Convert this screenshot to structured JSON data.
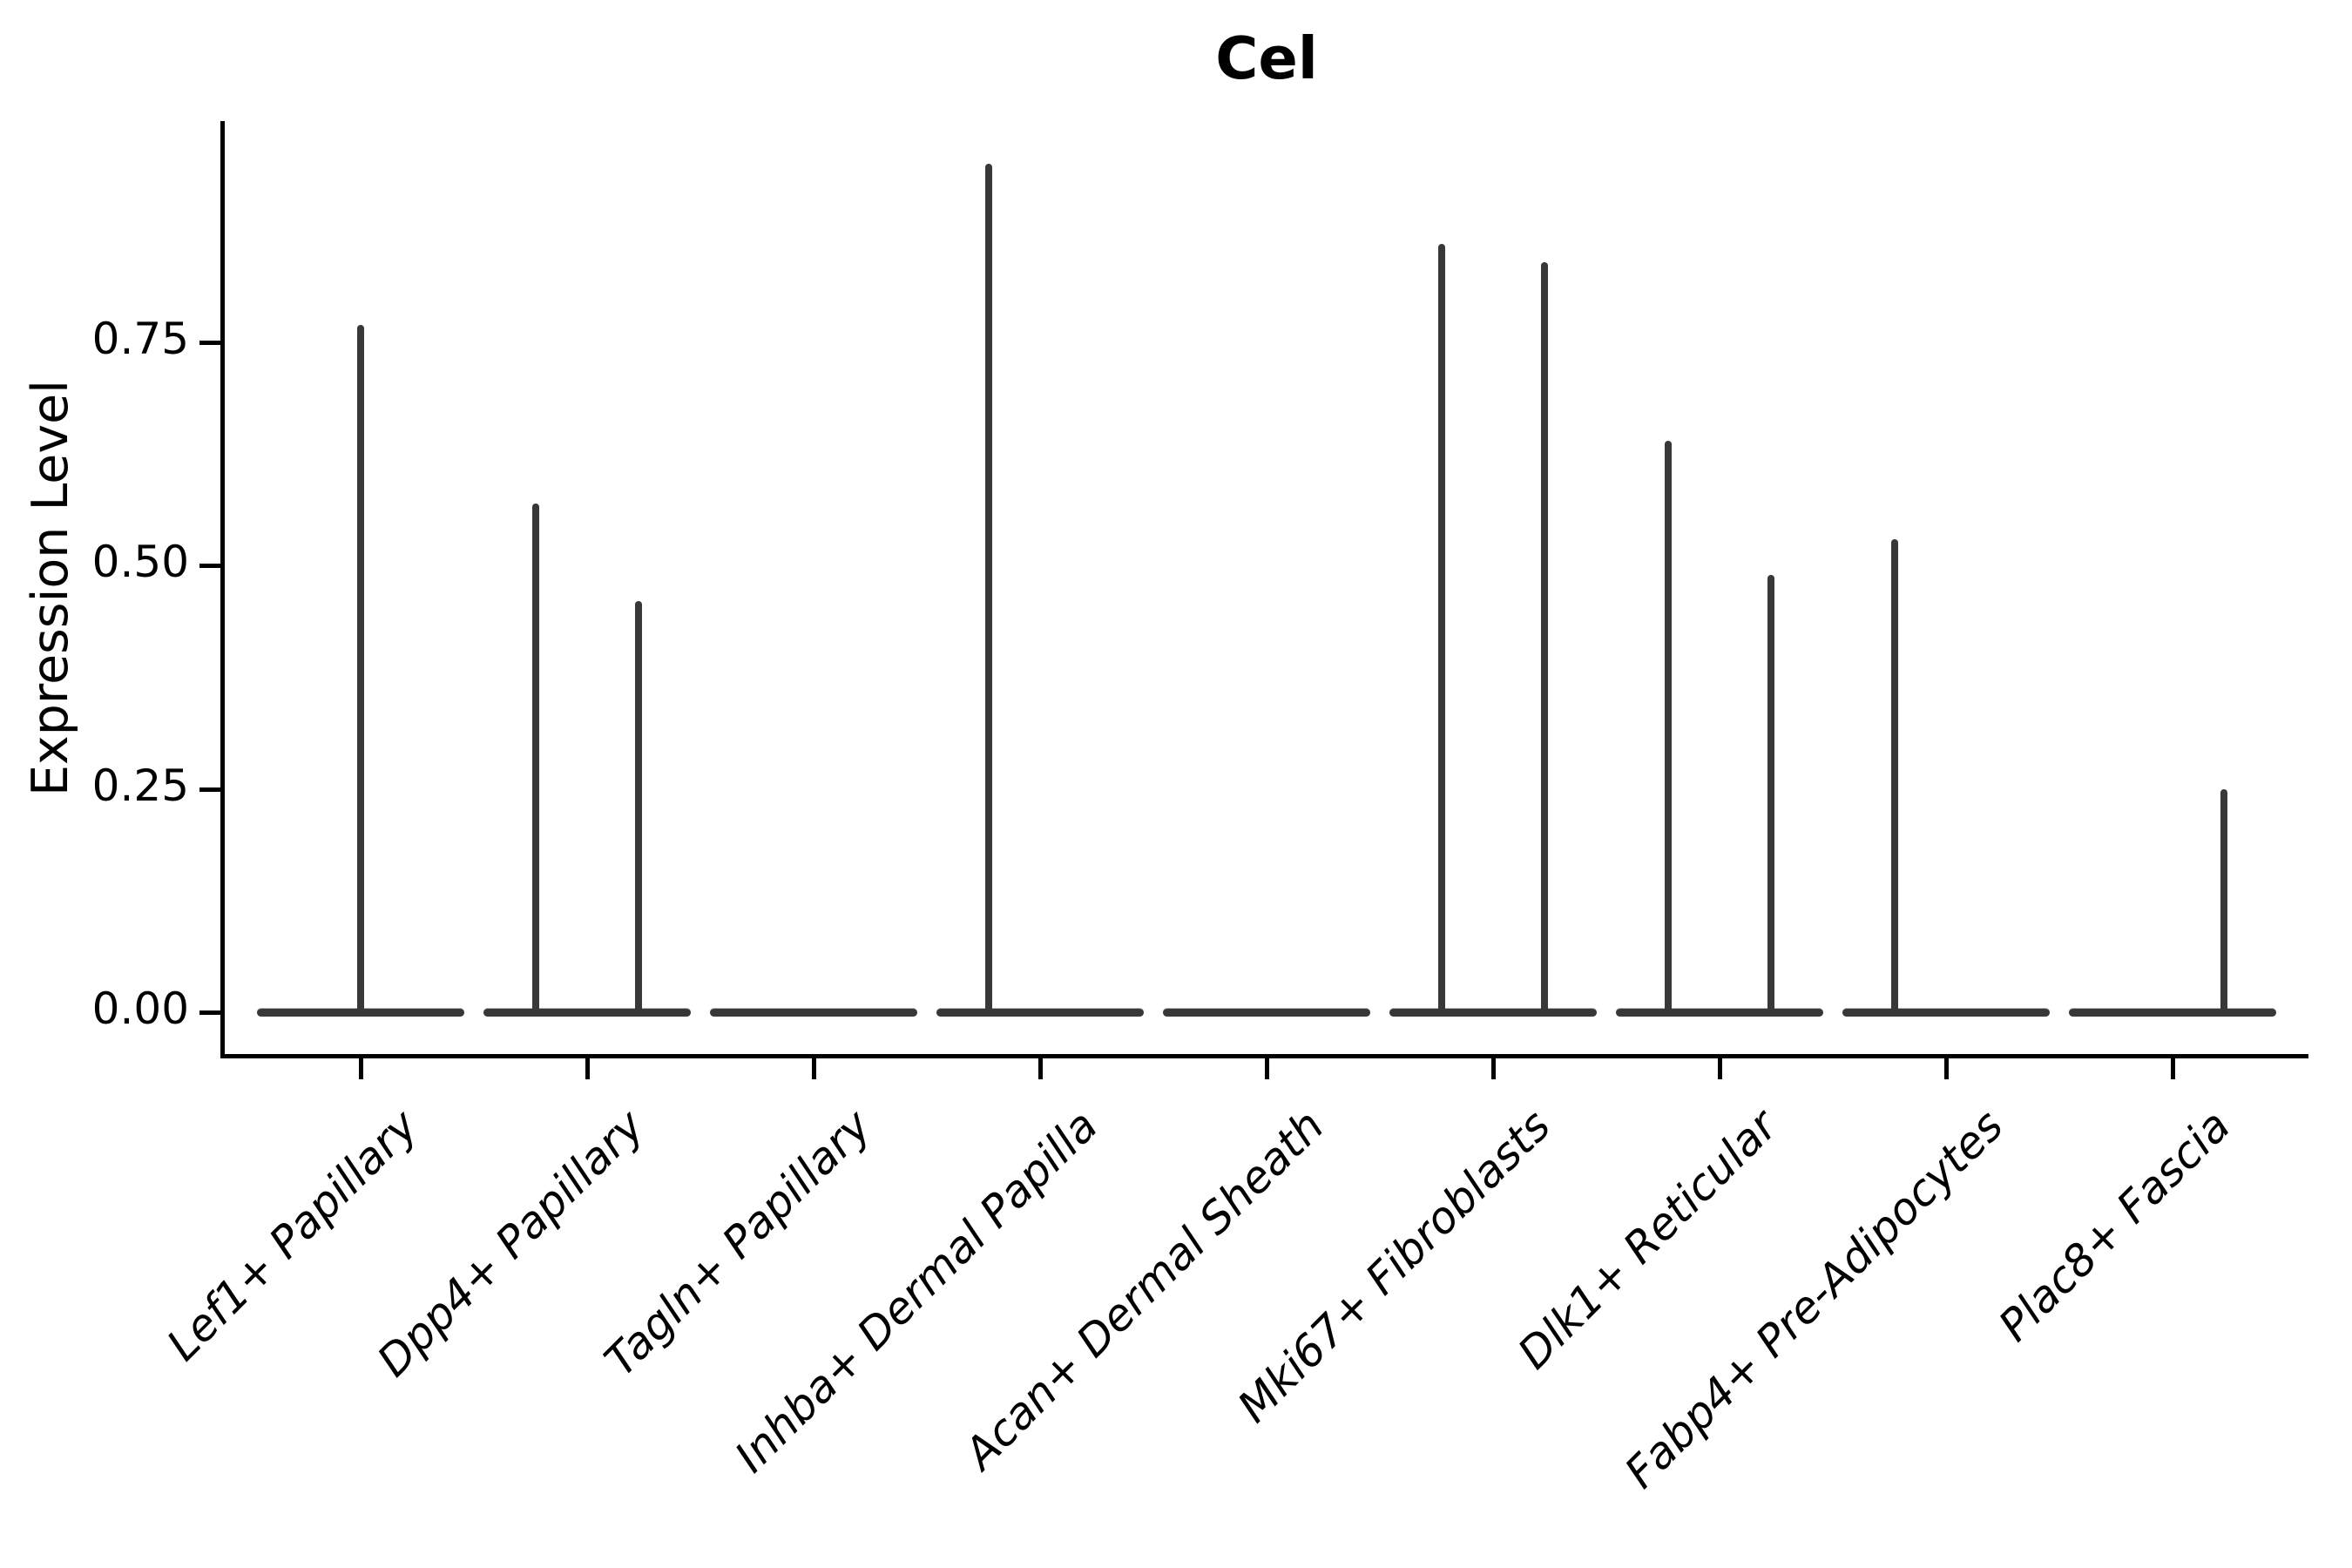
{
  "title": "Cel",
  "y_axis": {
    "label": "Expression Level",
    "tick_labels": [
      "0.00",
      "0.25",
      "0.50",
      "0.75"
    ],
    "tick_values": [
      0.0,
      0.25,
      0.5,
      0.75
    ]
  },
  "x_axis": {
    "categories": [
      "Lef1+ Papillary",
      "Dpp4+ Papillary",
      "Tagln+ Papillary",
      "Inhba+ Dermal Papilla",
      "Acan+ Dermal Sheath",
      "Mki67+ Fibroblasts",
      "Dlk1+ Reticular",
      "Fabp4+ Pre-Adipocytes",
      "Plac8+ Fascia"
    ]
  },
  "chart_data": {
    "type": "violin",
    "title": "Cel",
    "xlabel": "",
    "ylabel": "Expression Level",
    "ylim": [
      -0.047,
      1.0
    ],
    "yticks": [
      0.0,
      0.25,
      0.5,
      0.75
    ],
    "grid": false,
    "legend": "none",
    "categories": [
      "Lef1+ Papillary",
      "Dpp4+ Papillary",
      "Tagln+ Papillary",
      "Inhba+ Dermal Papilla",
      "Acan+ Dermal Sheath",
      "Mki67+ Fibroblasts",
      "Dlk1+ Reticular",
      "Fabp4+ Pre-Adipocytes",
      "Plac8+ Fascia"
    ],
    "series": [
      {
        "category": "Lef1+ Papillary",
        "baseline_value": 0.0,
        "spikes": [
          {
            "position": "center",
            "peak": 0.77
          }
        ]
      },
      {
        "category": "Dpp4+ Papillary",
        "baseline_value": 0.0,
        "spikes": [
          {
            "position": "left",
            "peak": 0.57
          },
          {
            "position": "right",
            "peak": 0.46
          }
        ]
      },
      {
        "category": "Tagln+ Papillary",
        "baseline_value": 0.0,
        "spikes": []
      },
      {
        "category": "Inhba+ Dermal Papilla",
        "baseline_value": 0.0,
        "spikes": [
          {
            "position": "left",
            "peak": 0.95
          }
        ]
      },
      {
        "category": "Acan+ Dermal Sheath",
        "baseline_value": 0.0,
        "spikes": []
      },
      {
        "category": "Mki67+ Fibroblasts",
        "baseline_value": 0.0,
        "spikes": [
          {
            "position": "left",
            "peak": 0.86
          },
          {
            "position": "right",
            "peak": 0.84
          }
        ]
      },
      {
        "category": "Dlk1+ Reticular",
        "baseline_value": 0.0,
        "spikes": [
          {
            "position": "left",
            "peak": 0.64
          },
          {
            "position": "right",
            "peak": 0.49
          }
        ]
      },
      {
        "category": "Fabp4+ Pre-Adipocytes",
        "baseline_value": 0.0,
        "spikes": [
          {
            "position": "left",
            "peak": 0.53
          }
        ]
      },
      {
        "category": "Plac8+ Fascia",
        "baseline_value": 0.0,
        "spikes": [
          {
            "position": "right",
            "peak": 0.25
          }
        ]
      }
    ],
    "style": {
      "violin_color": "#383838",
      "axis_color": "#000000",
      "background": "#ffffff"
    }
  }
}
